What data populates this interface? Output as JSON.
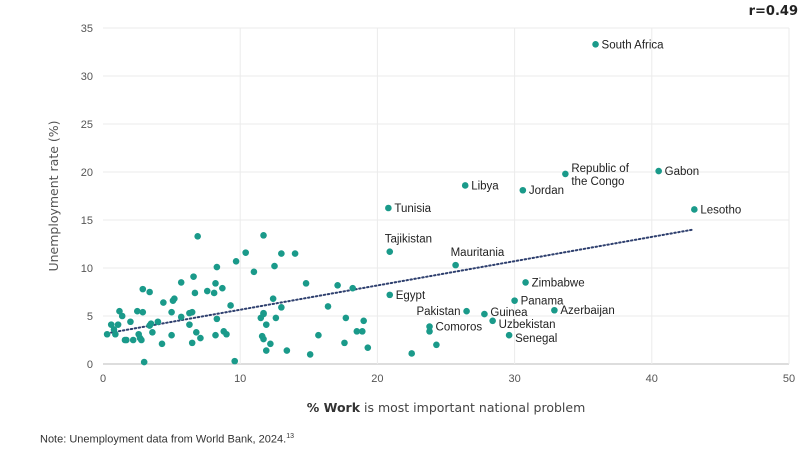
{
  "chart_data": {
    "type": "scatter",
    "annotation": "r=0.49",
    "xlabel_bold": "% Work",
    "xlabel_rest": " is most important national problem",
    "ylabel": "Unemployment rate (%)",
    "xlim": [
      0,
      50
    ],
    "ylim": [
      0,
      35
    ],
    "xticks": [
      0,
      10,
      20,
      30,
      40,
      50
    ],
    "yticks": [
      0,
      5,
      10,
      15,
      20,
      25,
      30,
      35
    ],
    "grid": true,
    "point_color": "#1a9a8a",
    "trend_color": "#2e3f6e",
    "trendline": {
      "style": "dotted",
      "x": [
        0.3,
        43
      ],
      "y": [
        3.2,
        14.0
      ]
    },
    "labeled_points": [
      {
        "label": "South Africa",
        "x": 35.9,
        "y": 33.3,
        "pos": "right"
      },
      {
        "label": "Republic of",
        "label2": "the Congo",
        "x": 33.7,
        "y": 19.8,
        "pos": "right"
      },
      {
        "label": "Gabon",
        "x": 40.5,
        "y": 20.1,
        "pos": "right"
      },
      {
        "label": "Lesotho",
        "x": 43.1,
        "y": 16.1,
        "pos": "right"
      },
      {
        "label": "Libya",
        "x": 26.4,
        "y": 18.6,
        "pos": "right"
      },
      {
        "label": "Jordan",
        "x": 30.6,
        "y": 18.1,
        "pos": "right"
      },
      {
        "label": "Tunisia",
        "x": 20.8,
        "y": 16.25,
        "pos": "right"
      },
      {
        "label": "Tajikistan",
        "x": 20.9,
        "y": 11.7,
        "pos": "above"
      },
      {
        "label": "Mauritania",
        "x": 25.7,
        "y": 10.3,
        "pos": "above"
      },
      {
        "label": "Zimbabwe",
        "x": 30.8,
        "y": 8.5,
        "pos": "right"
      },
      {
        "label": "Egypt",
        "x": 20.9,
        "y": 7.2,
        "pos": "right"
      },
      {
        "label": "Panama",
        "x": 30.0,
        "y": 6.6,
        "pos": "right"
      },
      {
        "label": "Azerbaijan",
        "x": 32.9,
        "y": 5.6,
        "pos": "right"
      },
      {
        "label": "Pakistan",
        "x": 26.5,
        "y": 5.5,
        "pos": "left"
      },
      {
        "label": "Guinea",
        "x": 27.8,
        "y": 5.2,
        "pos": "right"
      },
      {
        "label": "Uzbekistan",
        "x": 28.4,
        "y": 4.5,
        "pos": "right"
      },
      {
        "label": "Comoros",
        "x": 23.8,
        "y": 3.9,
        "pos": "right"
      },
      {
        "label": "Senegal",
        "x": 29.6,
        "y": 3.0,
        "pos": "right"
      }
    ],
    "points": [
      [
        23.8,
        3.4
      ],
      [
        22.5,
        1.1
      ],
      [
        24.3,
        2.0
      ],
      [
        0.3,
        3.1
      ],
      [
        0.6,
        4.1
      ],
      [
        0.8,
        3.6
      ],
      [
        0.9,
        3.1
      ],
      [
        1.2,
        5.5
      ],
      [
        1.4,
        5.0
      ],
      [
        1.1,
        4.1
      ],
      [
        1.6,
        2.5
      ],
      [
        1.7,
        2.5
      ],
      [
        2.0,
        4.4
      ],
      [
        2.2,
        2.5
      ],
      [
        2.5,
        5.5
      ],
      [
        2.6,
        3.1
      ],
      [
        2.7,
        2.7
      ],
      [
        2.8,
        2.5
      ],
      [
        2.9,
        7.8
      ],
      [
        2.9,
        5.4
      ],
      [
        3.0,
        0.2
      ],
      [
        3.4,
        7.5
      ],
      [
        3.4,
        4.0
      ],
      [
        3.5,
        4.2
      ],
      [
        3.6,
        3.3
      ],
      [
        4.0,
        4.4
      ],
      [
        4.3,
        2.1
      ],
      [
        4.4,
        6.4
      ],
      [
        5.0,
        5.4
      ],
      [
        5.0,
        3.0
      ],
      [
        5.1,
        6.6
      ],
      [
        5.2,
        6.8
      ],
      [
        5.7,
        4.9
      ],
      [
        5.7,
        8.5
      ],
      [
        6.3,
        4.1
      ],
      [
        6.3,
        5.3
      ],
      [
        6.5,
        5.4
      ],
      [
        6.5,
        2.2
      ],
      [
        6.6,
        9.1
      ],
      [
        6.7,
        7.4
      ],
      [
        6.8,
        3.3
      ],
      [
        6.9,
        13.3
      ],
      [
        7.1,
        2.7
      ],
      [
        7.6,
        7.6
      ],
      [
        8.1,
        7.4
      ],
      [
        8.2,
        8.4
      ],
      [
        8.3,
        10.1
      ],
      [
        8.3,
        4.7
      ],
      [
        8.2,
        3.0
      ],
      [
        8.7,
        7.9
      ],
      [
        8.8,
        3.4
      ],
      [
        9.0,
        3.1
      ],
      [
        9.3,
        6.1
      ],
      [
        9.6,
        0.3
      ],
      [
        9.7,
        10.7
      ],
      [
        10.4,
        11.6
      ],
      [
        11.0,
        9.6
      ],
      [
        11.5,
        4.8
      ],
      [
        11.6,
        2.9
      ],
      [
        11.7,
        5.3
      ],
      [
        11.7,
        13.4
      ],
      [
        11.7,
        5.2
      ],
      [
        11.7,
        2.6
      ],
      [
        11.9,
        4.1
      ],
      [
        11.9,
        1.4
      ],
      [
        12.2,
        2.1
      ],
      [
        12.4,
        6.8
      ],
      [
        12.5,
        10.2
      ],
      [
        12.6,
        4.8
      ],
      [
        13.0,
        5.9
      ],
      [
        13.0,
        11.5
      ],
      [
        13.4,
        1.4
      ],
      [
        14.0,
        11.5
      ],
      [
        14.8,
        8.4
      ],
      [
        15.1,
        1.0
      ],
      [
        15.7,
        3.0
      ],
      [
        16.4,
        6.0
      ],
      [
        17.1,
        8.2
      ],
      [
        17.6,
        2.2
      ],
      [
        17.7,
        4.8
      ],
      [
        18.2,
        7.9
      ],
      [
        18.5,
        3.4
      ],
      [
        18.9,
        3.4
      ],
      [
        19.0,
        4.5
      ],
      [
        19.3,
        1.7
      ]
    ]
  },
  "note": {
    "text": "Note: Unemployment data from World Bank, 2024.",
    "ref": "13"
  }
}
